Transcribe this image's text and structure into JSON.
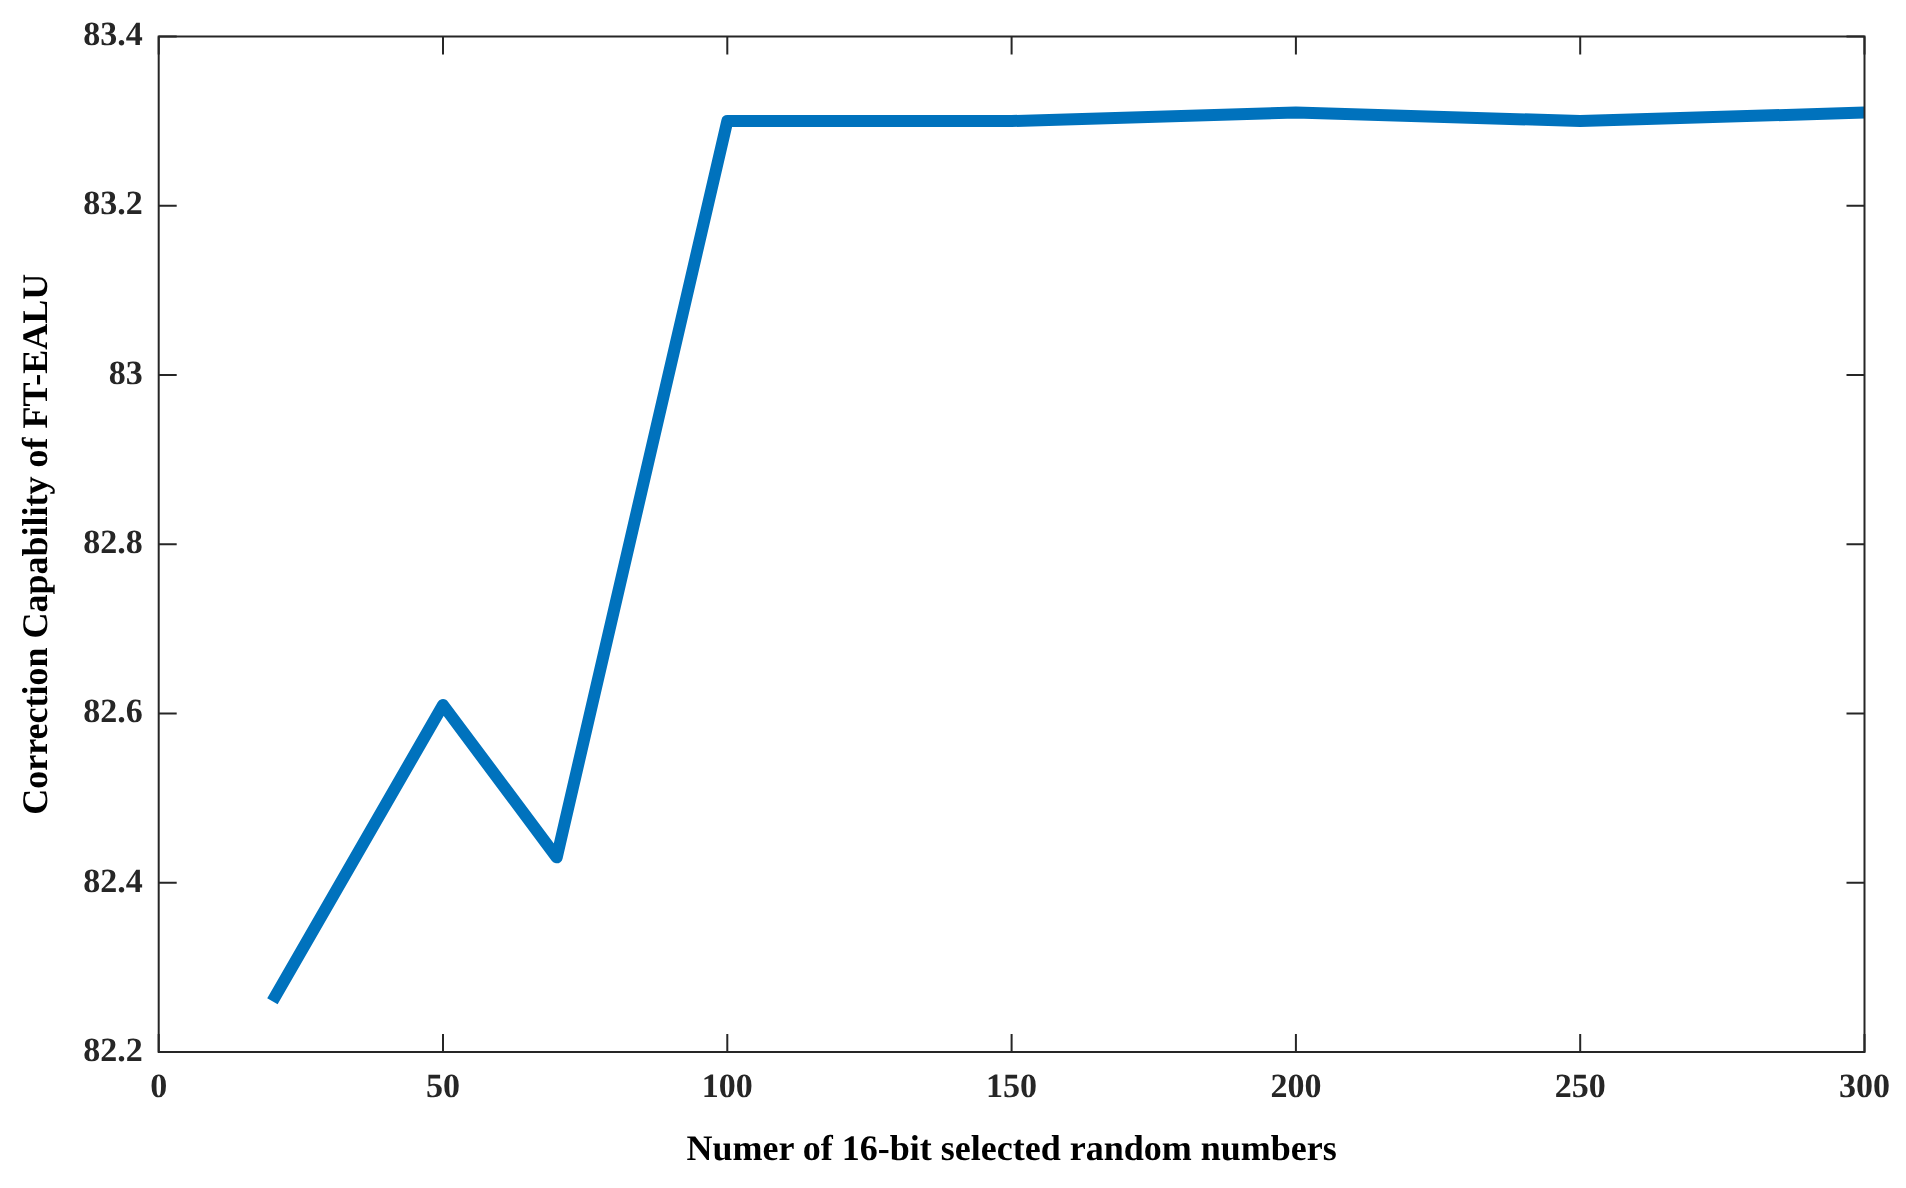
{
  "chart_data": {
    "type": "line",
    "xlabel": "Numer of 16-bit selected random numbers",
    "ylabel": "Correction Capability of FT-EALU",
    "x": [
      20,
      50,
      70,
      100,
      150,
      200,
      250,
      300
    ],
    "series": [
      {
        "color": "#0072bd",
        "values": [
          82.26,
          82.61,
          82.43,
          83.3,
          83.3,
          83.31,
          83.3,
          83.31
        ]
      }
    ],
    "xlim": [
      0,
      300
    ],
    "xticks": [
      0,
      50,
      100,
      150,
      200,
      250,
      300
    ],
    "ylim": [
      82.2,
      83.4
    ],
    "yticks": [
      82.2,
      82.4,
      82.6,
      82.8,
      83,
      83.2,
      83.4
    ],
    "grid": false,
    "legend": false,
    "marker": "none",
    "line_style": "solid"
  }
}
